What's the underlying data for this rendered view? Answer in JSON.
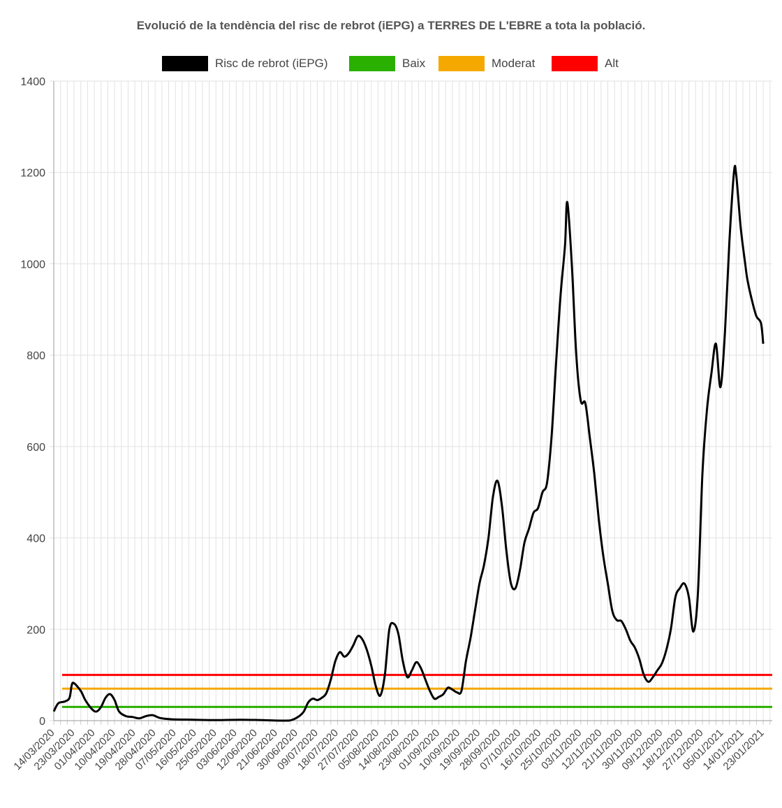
{
  "chart_data": {
    "type": "line",
    "title": "Evolució de la tendència del risc de rebrot (iEPG) a TERRES DE L'EBRE a tota la població.",
    "ylim": [
      0,
      1400
    ],
    "yticks": [
      0,
      200,
      400,
      600,
      800,
      1000,
      1200,
      1400
    ],
    "grid": true,
    "legend_position": "top",
    "x_start": "14/03/2020",
    "x_end": "27/01/2021",
    "x_tick_labels": [
      "14/03/2020",
      "23/03/2020",
      "01/04/2020",
      "10/04/2020",
      "19/04/2020",
      "28/04/2020",
      "07/05/2020",
      "16/05/2020",
      "25/05/2020",
      "03/06/2020",
      "12/06/2020",
      "21/06/2020",
      "30/06/2020",
      "09/07/2020",
      "18/07/2020",
      "27/07/2020",
      "05/08/2020",
      "14/08/2020",
      "23/08/2020",
      "01/09/2020",
      "10/09/2020",
      "19/09/2020",
      "28/09/2020",
      "07/10/2020",
      "16/10/2020",
      "25/10/2020",
      "03/11/2020",
      "12/11/2020",
      "21/11/2020",
      "30/11/2020",
      "09/12/2020",
      "18/12/2020",
      "27/12/2020",
      "05/01/2021",
      "14/01/2021",
      "23/01/2021"
    ],
    "series": [
      {
        "name": "Risc de rebrot (iEPG)",
        "color": "#000000",
        "points": [
          [
            "14/03/2020",
            20
          ],
          [
            "16/03/2020",
            38
          ],
          [
            "19/03/2020",
            42
          ],
          [
            "21/03/2020",
            50
          ],
          [
            "22/03/2020",
            78
          ],
          [
            "23/03/2020",
            82
          ],
          [
            "26/03/2020",
            65
          ],
          [
            "28/03/2020",
            45
          ],
          [
            "31/03/2020",
            25
          ],
          [
            "02/04/2020",
            20
          ],
          [
            "04/04/2020",
            30
          ],
          [
            "06/04/2020",
            50
          ],
          [
            "08/04/2020",
            58
          ],
          [
            "10/04/2020",
            45
          ],
          [
            "12/04/2020",
            20
          ],
          [
            "15/04/2020",
            10
          ],
          [
            "18/04/2020",
            8
          ],
          [
            "21/04/2020",
            5
          ],
          [
            "24/04/2020",
            10
          ],
          [
            "27/04/2020",
            12
          ],
          [
            "30/04/2020",
            6
          ],
          [
            "05/05/2020",
            3
          ],
          [
            "15/05/2020",
            2
          ],
          [
            "25/05/2020",
            1
          ],
          [
            "05/06/2020",
            2
          ],
          [
            "15/06/2020",
            1
          ],
          [
            "25/06/2020",
            0
          ],
          [
            "28/06/2020",
            2
          ],
          [
            "01/07/2020",
            10
          ],
          [
            "03/07/2020",
            20
          ],
          [
            "05/07/2020",
            40
          ],
          [
            "07/07/2020",
            48
          ],
          [
            "09/07/2020",
            45
          ],
          [
            "11/07/2020",
            50
          ],
          [
            "13/07/2020",
            60
          ],
          [
            "15/07/2020",
            90
          ],
          [
            "17/07/2020",
            130
          ],
          [
            "19/07/2020",
            150
          ],
          [
            "21/07/2020",
            140
          ],
          [
            "23/07/2020",
            148
          ],
          [
            "25/07/2020",
            165
          ],
          [
            "27/07/2020",
            185
          ],
          [
            "29/07/2020",
            178
          ],
          [
            "31/07/2020",
            155
          ],
          [
            "02/08/2020",
            120
          ],
          [
            "04/08/2020",
            75
          ],
          [
            "06/08/2020",
            55
          ],
          [
            "08/08/2020",
            100
          ],
          [
            "10/08/2020",
            200
          ],
          [
            "12/08/2020",
            212
          ],
          [
            "14/08/2020",
            190
          ],
          [
            "16/08/2020",
            130
          ],
          [
            "18/08/2020",
            95
          ],
          [
            "20/08/2020",
            110
          ],
          [
            "22/08/2020",
            128
          ],
          [
            "24/08/2020",
            115
          ],
          [
            "26/08/2020",
            90
          ],
          [
            "28/08/2020",
            65
          ],
          [
            "30/08/2020",
            48
          ],
          [
            "01/09/2020",
            52
          ],
          [
            "03/09/2020",
            58
          ],
          [
            "05/09/2020",
            72
          ],
          [
            "07/09/2020",
            68
          ],
          [
            "09/09/2020",
            62
          ],
          [
            "11/09/2020",
            65
          ],
          [
            "13/09/2020",
            130
          ],
          [
            "15/09/2020",
            180
          ],
          [
            "17/09/2020",
            240
          ],
          [
            "19/09/2020",
            300
          ],
          [
            "21/09/2020",
            340
          ],
          [
            "23/09/2020",
            400
          ],
          [
            "25/09/2020",
            490
          ],
          [
            "27/09/2020",
            525
          ],
          [
            "29/09/2020",
            470
          ],
          [
            "01/10/2020",
            370
          ],
          [
            "03/10/2020",
            300
          ],
          [
            "05/10/2020",
            290
          ],
          [
            "07/10/2020",
            330
          ],
          [
            "09/10/2020",
            390
          ],
          [
            "11/10/2020",
            420
          ],
          [
            "13/10/2020",
            455
          ],
          [
            "15/10/2020",
            465
          ],
          [
            "17/10/2020",
            500
          ],
          [
            "19/10/2020",
            520
          ],
          [
            "21/10/2020",
            620
          ],
          [
            "23/10/2020",
            780
          ],
          [
            "25/10/2020",
            930
          ],
          [
            "27/10/2020",
            1040
          ],
          [
            "28/10/2020",
            1135
          ],
          [
            "30/10/2020",
            1000
          ],
          [
            "01/11/2020",
            800
          ],
          [
            "03/11/2020",
            700
          ],
          [
            "05/11/2020",
            695
          ],
          [
            "07/11/2020",
            620
          ],
          [
            "09/11/2020",
            540
          ],
          [
            "11/11/2020",
            440
          ],
          [
            "13/11/2020",
            360
          ],
          [
            "15/11/2020",
            300
          ],
          [
            "17/11/2020",
            240
          ],
          [
            "19/11/2020",
            220
          ],
          [
            "21/11/2020",
            218
          ],
          [
            "23/11/2020",
            200
          ],
          [
            "25/11/2020",
            175
          ],
          [
            "27/11/2020",
            160
          ],
          [
            "29/11/2020",
            135
          ],
          [
            "01/12/2020",
            100
          ],
          [
            "03/12/2020",
            85
          ],
          [
            "05/12/2020",
            95
          ],
          [
            "07/12/2020",
            110
          ],
          [
            "09/12/2020",
            125
          ],
          [
            "11/12/2020",
            155
          ],
          [
            "13/12/2020",
            200
          ],
          [
            "15/12/2020",
            270
          ],
          [
            "17/12/2020",
            290
          ],
          [
            "19/12/2020",
            300
          ],
          [
            "21/12/2020",
            270
          ],
          [
            "23/12/2020",
            195
          ],
          [
            "25/12/2020",
            280
          ],
          [
            "27/12/2020",
            540
          ],
          [
            "29/12/2020",
            680
          ],
          [
            "31/12/2020",
            760
          ],
          [
            "02/01/2021",
            825
          ],
          [
            "04/01/2021",
            730
          ],
          [
            "06/01/2021",
            850
          ],
          [
            "08/01/2021",
            1050
          ],
          [
            "10/01/2021",
            1200
          ],
          [
            "11/01/2021",
            1195
          ],
          [
            "13/01/2021",
            1080
          ],
          [
            "15/01/2021",
            1000
          ],
          [
            "16/01/2021",
            965
          ],
          [
            "18/01/2021",
            920
          ],
          [
            "20/01/2021",
            885
          ],
          [
            "22/01/2021",
            870
          ],
          [
            "23/01/2021",
            825
          ]
        ]
      },
      {
        "name": "Baix",
        "color": "#2ab000",
        "constant": 30
      },
      {
        "name": "Moderat",
        "color": "#f5a800",
        "constant": 70
      },
      {
        "name": "Alt",
        "color": "#ff0000",
        "constant": 100
      }
    ]
  }
}
